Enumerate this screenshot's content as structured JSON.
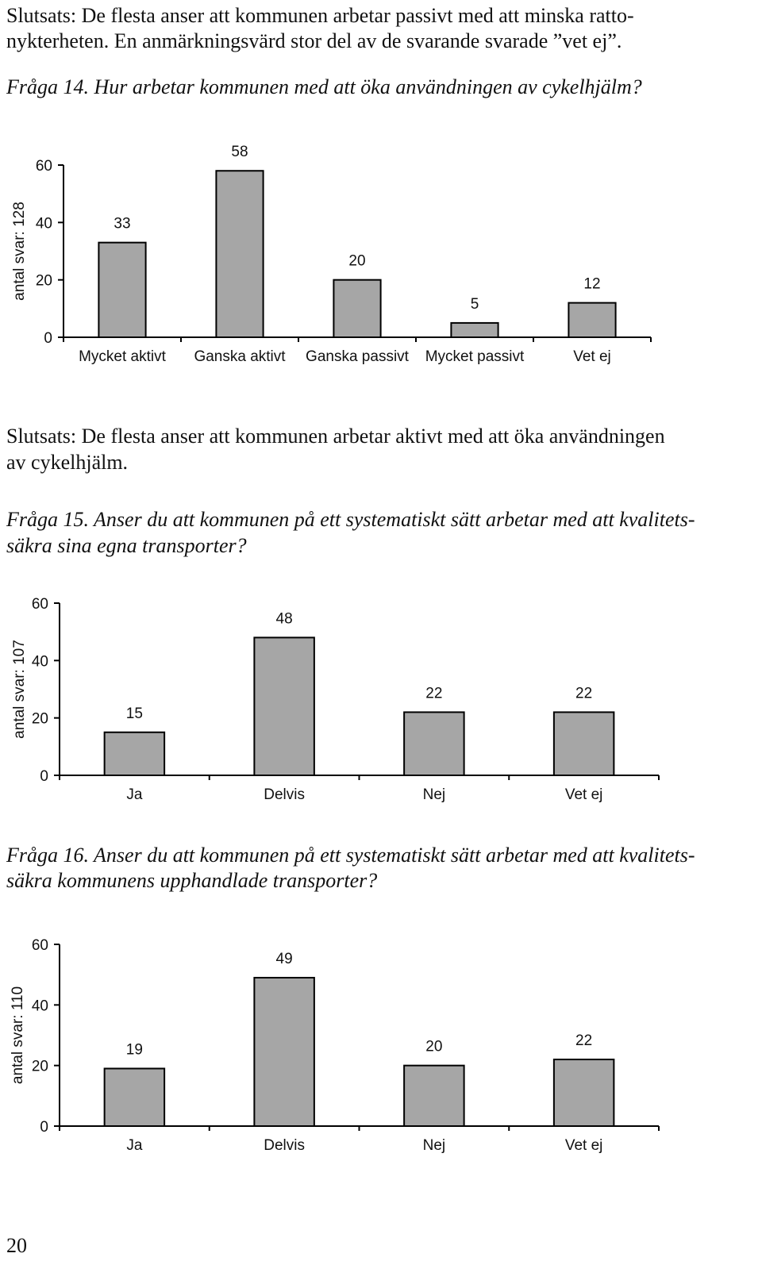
{
  "document": {
    "lines": [
      {
        "text": "Slutsats: De flesta anser att kommunen arbetar passivt med att minska ratto-",
        "italic": false
      },
      {
        "text": "nykterheten. En anmärkningsvärd stor del av de svarande svarade ”vet ej”.",
        "italic": false
      },
      {
        "text": "Fråga 14. Hur arbetar kommunen med att öka användningen av cykelhjälm?",
        "italic": true
      },
      {
        "text": "Slutsats: De flesta anser att kommunen arbetar aktivt med att öka användningen",
        "italic": false
      },
      {
        "text": "av cykelhjälm.",
        "italic": false
      },
      {
        "text": "Fråga 15. Anser du att kommunen på ett systematiskt sätt arbetar med att kvalitets-",
        "italic": true
      },
      {
        "text": "säkra sina egna transporter?",
        "italic": true
      },
      {
        "text": "Fråga 16. Anser du att kommunen på ett systematiskt sätt arbetar med att kvalitets-",
        "italic": true
      },
      {
        "text": "säkra kommunens upphandlade transporter?",
        "italic": true
      }
    ],
    "page_number": "20"
  },
  "chart_data": [
    {
      "type": "bar",
      "y_label": "antal svar: 128",
      "categories": [
        "Mycket aktivt",
        "Ganska aktivt",
        "Ganska passivt",
        "Mycket passivt",
        "Vet ej"
      ],
      "values": [
        33,
        58,
        20,
        5,
        12
      ],
      "color": "#a6a6a6",
      "ylim": [
        0,
        60
      ],
      "yticks": [
        0,
        20,
        40,
        60
      ]
    },
    {
      "type": "bar",
      "y_label": "antal svar: 107",
      "categories": [
        "Ja",
        "Delvis",
        "Nej",
        "Vet ej"
      ],
      "values": [
        15,
        48,
        22,
        22
      ],
      "color": "#a6a6a6",
      "ylim": [
        0,
        60
      ],
      "yticks": [
        0,
        20,
        40,
        60
      ]
    },
    {
      "type": "bar",
      "y_label": "antal svar: 110",
      "categories": [
        "Ja",
        "Delvis",
        "Nej",
        "Vet ej"
      ],
      "values": [
        19,
        49,
        20,
        22
      ],
      "color": "#a6a6a6",
      "ylim": [
        0,
        60
      ],
      "yticks": [
        0,
        20,
        40,
        60
      ]
    }
  ]
}
